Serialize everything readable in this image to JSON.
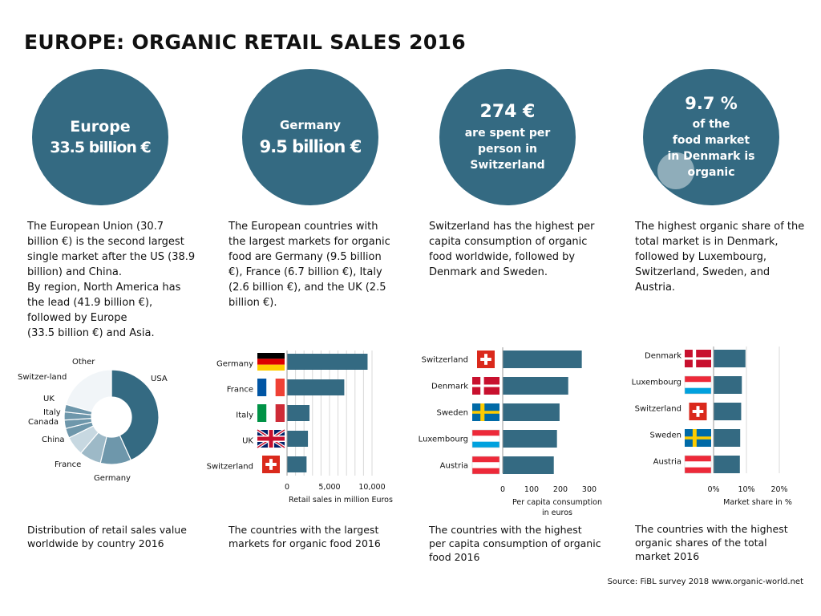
{
  "title": "EUROPE: ORGANIC RETAIL SALES 2016",
  "circles": [
    {
      "line1": "Europe",
      "line2": "33.5 billion €"
    },
    {
      "line1": "Germany",
      "line2": "9.5 billion €"
    },
    {
      "line1": "274 €",
      "line2": "are spent per",
      "line3": "person in",
      "line4": "Switzerland"
    },
    {
      "line1": "9.7 %",
      "line2": "of  the",
      "line3": "food market",
      "line4": "in Denmark is",
      "line5": "organic"
    }
  ],
  "descriptions": [
    [
      "The European Union (30.7",
      "billion €) is the second largest",
      "single market after the US (38.9",
      "billion)  and China.",
      "By region, North America has",
      "the lead (41.9 billion €),",
      "followed by Europe",
      "(33.5 billion €) and Asia."
    ],
    [
      "The European countries with",
      "the largest markets for organic",
      "food are Germany (9.5 billion",
      "€), France (6.7 billion €), Italy",
      "(2.6 billion €), and the UK (2.5",
      "billion €)."
    ],
    [
      "Switzerland has the highest per",
      "capita consumption of organic",
      "food worldwide, followed by",
      "Denmark and Sweden."
    ],
    [
      "The highest organic share of the",
      "total market is in Denmark,",
      "followed by Luxembourg,",
      "Switzerland, Sweden, and",
      "Austria."
    ]
  ],
  "captions": [
    [
      "Distribution of retail sales value",
      "worldwide by country 2016"
    ],
    [
      "The countries with the largest",
      "markets for organic food  2016"
    ],
    [
      "The countries with the highest",
      "per capita consumption of organic",
      "food 2016"
    ],
    [
      "The countries with  the highest",
      "organic shares of the total",
      "market 2016"
    ]
  ],
  "source": "Source: FiBL survey 2018  www.organic-world.net",
  "colors": {
    "accent": "#346a82",
    "bar": "#346a82"
  },
  "chart_data": [
    {
      "type": "pie",
      "title": "Distribution of retail sales value worldwide by country 2016",
      "labels": [
        "USA",
        "Germany",
        "France",
        "China",
        "Canada",
        "Italy",
        "UK",
        "Switzer-land",
        "Other"
      ],
      "values": [
        38.9,
        9.5,
        6.7,
        5.9,
        3.0,
        2.6,
        2.5,
        2.3,
        18.6
      ],
      "unit": "billion €"
    },
    {
      "type": "bar",
      "orientation": "horizontal",
      "categories": [
        "Germany",
        "France",
        "Italy",
        "UK",
        "Switzerland"
      ],
      "values": [
        9478,
        6736,
        2644,
        2460,
        2298
      ],
      "xlabel": "Retail sales in million Euros",
      "ticks": [
        "0",
        "5,000",
        "10,000"
      ],
      "xlim": [
        0,
        10000
      ]
    },
    {
      "type": "bar",
      "orientation": "horizontal",
      "categories": [
        "Switzerland",
        "Denmark",
        "Sweden",
        "Luxembourg",
        "Austria"
      ],
      "values": [
        274,
        227,
        197,
        188,
        177
      ],
      "xlabel": "Per capita consumption in euros",
      "xlabel_lines": [
        "Per capita consumption",
        "in euros"
      ],
      "ticks": [
        "0",
        "100",
        "200",
        "300"
      ],
      "xlim": [
        0,
        300
      ]
    },
    {
      "type": "bar",
      "orientation": "horizontal",
      "categories": [
        "Denmark",
        "Luxembourg",
        "Switzerland",
        "Sweden",
        "Austria"
      ],
      "values": [
        9.7,
        8.6,
        8.4,
        8.1,
        8.0
      ],
      "xlabel": "Market share in %",
      "ticks": [
        "0%",
        "10%",
        "20%"
      ],
      "xlim": [
        0,
        20
      ]
    }
  ]
}
